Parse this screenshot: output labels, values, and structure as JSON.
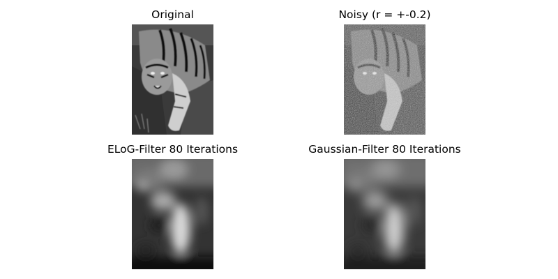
{
  "figure": {
    "panels": [
      {
        "title": "Original"
      },
      {
        "title": "Noisy (r = +-0.2)"
      },
      {
        "title": "ELoG-Filter 80 Iterations"
      },
      {
        "title": "Gaussian-Filter 80 Iterations"
      }
    ]
  },
  "colors": {
    "background": "#ffffff",
    "title_text": "#000000"
  },
  "colormap": "gray"
}
